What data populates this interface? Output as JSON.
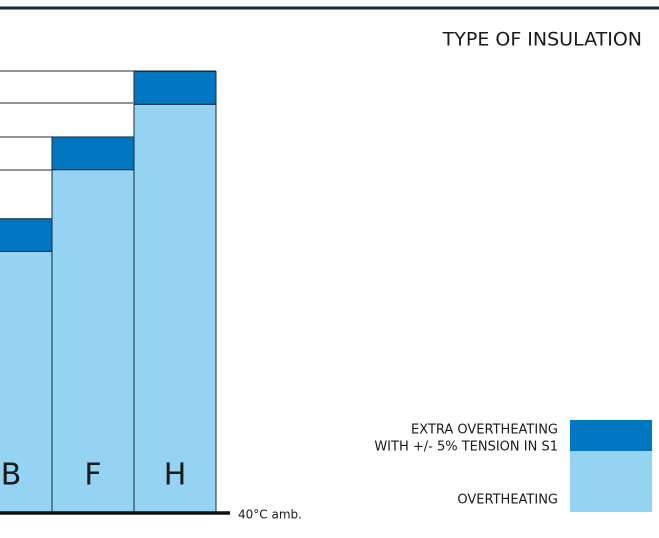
{
  "chart_data": {
    "type": "bar",
    "stacked": true,
    "title": "TYPE OF INSULATION",
    "categories": [
      "B",
      "F",
      "H"
    ],
    "series": [
      {
        "name": [
          "OVERTHEATING"
        ],
        "color": "#94d3f2",
        "values": [
          80,
          105,
          125
        ]
      },
      {
        "name": [
          "EXTRA OVERTHEATING",
          "WITH +/- 5% TENSION IN S1"
        ],
        "color": "#0077c0",
        "values": [
          10,
          10,
          10
        ]
      }
    ],
    "baseline_label": "40°C amb."
  }
}
